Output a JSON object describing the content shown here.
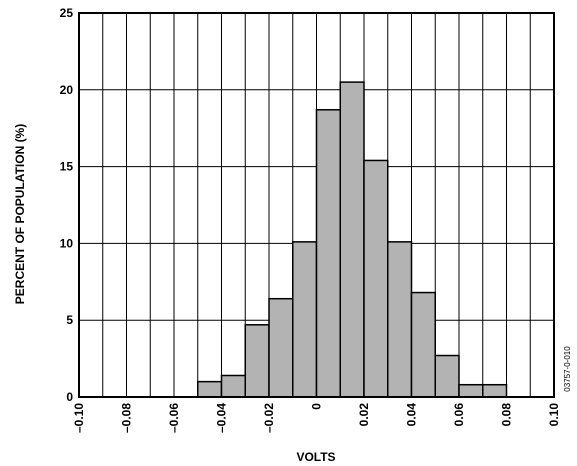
{
  "chart_data": {
    "type": "bar",
    "xlabel": "VOLTS",
    "ylabel": "PERCENT OF POPULATION (%)",
    "ylim": [
      0,
      25
    ],
    "xlim": [
      -0.1,
      0.1
    ],
    "bin_width": 0.01,
    "grid": "vertical",
    "x_tick_labels": [
      "–0.10",
      "–0.08",
      "–0.06",
      "–0.04",
      "–0.02",
      "0",
      "0.02",
      "0.04",
      "0.06",
      "0.08",
      "0.10"
    ],
    "x_tick_values": [
      -0.1,
      -0.08,
      -0.06,
      -0.04,
      -0.02,
      0,
      0.02,
      0.04,
      0.06,
      0.08,
      0.1
    ],
    "y_tick_labels": [
      "0",
      "5",
      "10",
      "15",
      "20",
      "25"
    ],
    "y_tick_values": [
      0,
      5,
      10,
      15,
      20,
      25
    ],
    "bars": [
      {
        "x": -0.045,
        "value": 1.0
      },
      {
        "x": -0.035,
        "value": 1.4
      },
      {
        "x": -0.025,
        "value": 4.7
      },
      {
        "x": -0.015,
        "value": 6.4
      },
      {
        "x": -0.005,
        "value": 10.1
      },
      {
        "x": 0.005,
        "value": 18.7
      },
      {
        "x": 0.015,
        "value": 20.5
      },
      {
        "x": 0.025,
        "value": 15.4
      },
      {
        "x": 0.035,
        "value": 10.1
      },
      {
        "x": 0.045,
        "value": 6.8
      },
      {
        "x": 0.055,
        "value": 2.7
      },
      {
        "x": 0.065,
        "value": 0.8
      },
      {
        "x": 0.075,
        "value": 0.8
      }
    ],
    "bar_color": "#b3b3b3",
    "side_label": "03757-0-010"
  }
}
